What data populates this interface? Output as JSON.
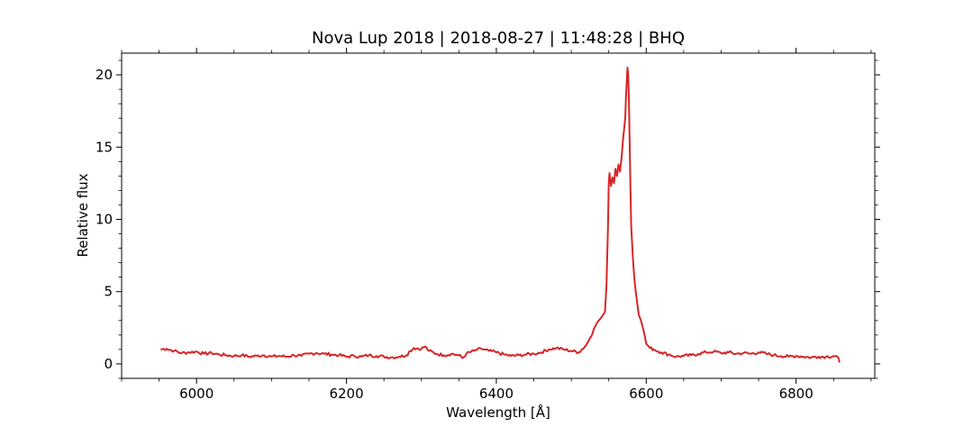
{
  "chart_data": {
    "type": "line",
    "title": "Nova Lup 2018 | 2018-08-27 | 11:48:28 | BHQ",
    "xlabel": "Wavelength [Å]",
    "ylabel": "Relative flux",
    "xlim": [
      5900,
      6905
    ],
    "ylim": [
      -1.0,
      21.5
    ],
    "xticks": [
      6000,
      6200,
      6400,
      6600,
      6800
    ],
    "yticks": [
      0,
      5,
      10,
      15,
      20
    ],
    "xtick_labels": [
      "6000",
      "6200",
      "6400",
      "6600",
      "6800"
    ],
    "ytick_labels": [
      "0",
      "5",
      "10",
      "15",
      "20"
    ],
    "minor_tick_step_x": 50,
    "minor_tick_step_y": 1,
    "grid": false,
    "legend": "none",
    "line_color": "#d62728",
    "series": [
      {
        "x": [
          5952,
          5960,
          5970,
          5980,
          5990,
          6000,
          6010,
          6020,
          6030,
          6040,
          6050,
          6060,
          6070,
          6080,
          6090,
          6100,
          6110,
          6120,
          6130,
          6140,
          6150,
          6160,
          6170,
          6180,
          6190,
          6200,
          6210,
          6220,
          6230,
          6240,
          6250,
          6260,
          6270,
          6280,
          6285,
          6290,
          6300,
          6305,
          6310,
          6320,
          6330,
          6340,
          6350,
          6355,
          6360,
          6370,
          6380,
          6390,
          6400,
          6410,
          6420,
          6430,
          6440,
          6450,
          6460,
          6470,
          6480,
          6490,
          6500,
          6510,
          6520,
          6525,
          6530,
          6535,
          6540,
          6545,
          6547,
          6549,
          6550,
          6551,
          6553,
          6555,
          6557,
          6559,
          6561,
          6563,
          6565,
          6567,
          6569,
          6571,
          6572,
          6573,
          6574,
          6575,
          6576,
          6577,
          6578,
          6579,
          6580,
          6582,
          6584,
          6586,
          6588,
          6590,
          6593,
          6596,
          6600,
          6605,
          6610,
          6620,
          6630,
          6640,
          6650,
          6660,
          6670,
          6680,
          6690,
          6700,
          6710,
          6720,
          6730,
          6740,
          6750,
          6760,
          6770,
          6780,
          6790,
          6800,
          6810,
          6820,
          6830,
          6840,
          6850,
          6855,
          6858
        ],
        "y": [
          1.0,
          1.05,
          0.9,
          0.75,
          0.8,
          0.85,
          0.7,
          0.75,
          0.65,
          0.6,
          0.55,
          0.6,
          0.5,
          0.55,
          0.6,
          0.5,
          0.55,
          0.5,
          0.6,
          0.55,
          0.7,
          0.75,
          0.7,
          0.65,
          0.6,
          0.5,
          0.55,
          0.5,
          0.6,
          0.55,
          0.5,
          0.45,
          0.5,
          0.6,
          0.9,
          1.1,
          1.05,
          1.2,
          0.9,
          0.7,
          0.6,
          0.7,
          0.6,
          0.4,
          0.7,
          0.9,
          1.05,
          0.9,
          0.8,
          0.65,
          0.55,
          0.6,
          0.65,
          0.7,
          0.8,
          1.0,
          1.1,
          1.0,
          0.9,
          0.8,
          1.3,
          1.8,
          2.4,
          2.9,
          3.2,
          3.6,
          5.5,
          9.5,
          12.5,
          13.2,
          12.3,
          12.9,
          12.5,
          13.5,
          13.0,
          13.8,
          13.3,
          14.2,
          15.5,
          16.5,
          17.0,
          18.5,
          19.5,
          20.5,
          20.0,
          18.0,
          15.0,
          12.0,
          9.5,
          7.5,
          6.0,
          5.0,
          4.2,
          3.4,
          3.0,
          2.4,
          1.4,
          1.1,
          1.0,
          0.8,
          0.65,
          0.5,
          0.55,
          0.6,
          0.7,
          0.8,
          0.85,
          0.75,
          0.8,
          0.7,
          0.75,
          0.7,
          0.8,
          0.7,
          0.6,
          0.55,
          0.5,
          0.55,
          0.5,
          0.45,
          0.5,
          0.5,
          0.55,
          0.5,
          0.1
        ]
      }
    ]
  }
}
